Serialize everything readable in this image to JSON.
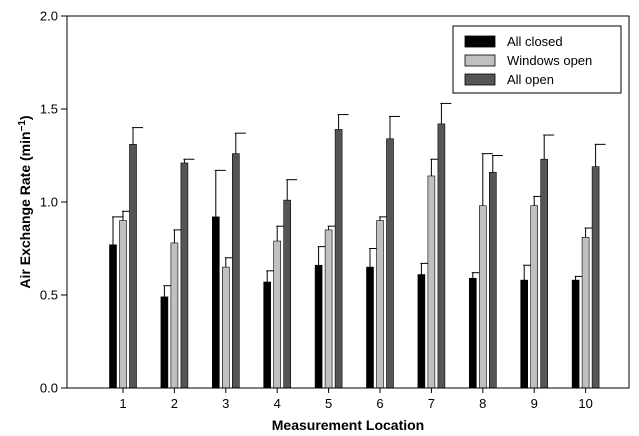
{
  "chart_data": {
    "type": "bar",
    "title": "",
    "xlabel": "Measurement Location",
    "ylabel": "Air Exchange Rate (min",
    "ylabel_sup": "−1",
    "ylabel_close": ")",
    "ylim": [
      0.0,
      2.0
    ],
    "yticks": [
      0.0,
      0.5,
      1.0,
      1.5,
      2.0
    ],
    "ytick_labels": [
      "0.0",
      "0.5",
      "1.0",
      "1.5",
      "2.0"
    ],
    "categories": [
      "1",
      "2",
      "3",
      "4",
      "5",
      "6",
      "7",
      "8",
      "9",
      "10"
    ],
    "legend_position": "top-right",
    "error_bars": "upper",
    "series": [
      {
        "name": "All closed",
        "color": "#000000",
        "values": [
          0.77,
          0.49,
          0.92,
          0.57,
          0.66,
          0.65,
          0.61,
          0.59,
          0.58,
          0.58
        ],
        "errors": [
          0.15,
          0.06,
          0.25,
          0.06,
          0.1,
          0.1,
          0.06,
          0.03,
          0.08,
          0.02
        ]
      },
      {
        "name": "Windows open",
        "color": "#c0c0c0",
        "values": [
          0.9,
          0.78,
          0.65,
          0.79,
          0.85,
          0.9,
          1.14,
          0.98,
          0.98,
          0.81
        ],
        "errors": [
          0.05,
          0.07,
          0.05,
          0.08,
          0.02,
          0.02,
          0.09,
          0.28,
          0.05,
          0.05
        ]
      },
      {
        "name": "All open",
        "color": "#555555",
        "values": [
          1.31,
          1.21,
          1.26,
          1.01,
          1.39,
          1.34,
          1.42,
          1.16,
          1.23,
          1.19
        ],
        "errors": [
          0.09,
          0.02,
          0.11,
          0.11,
          0.08,
          0.12,
          0.11,
          0.09,
          0.13,
          0.12
        ]
      }
    ]
  }
}
